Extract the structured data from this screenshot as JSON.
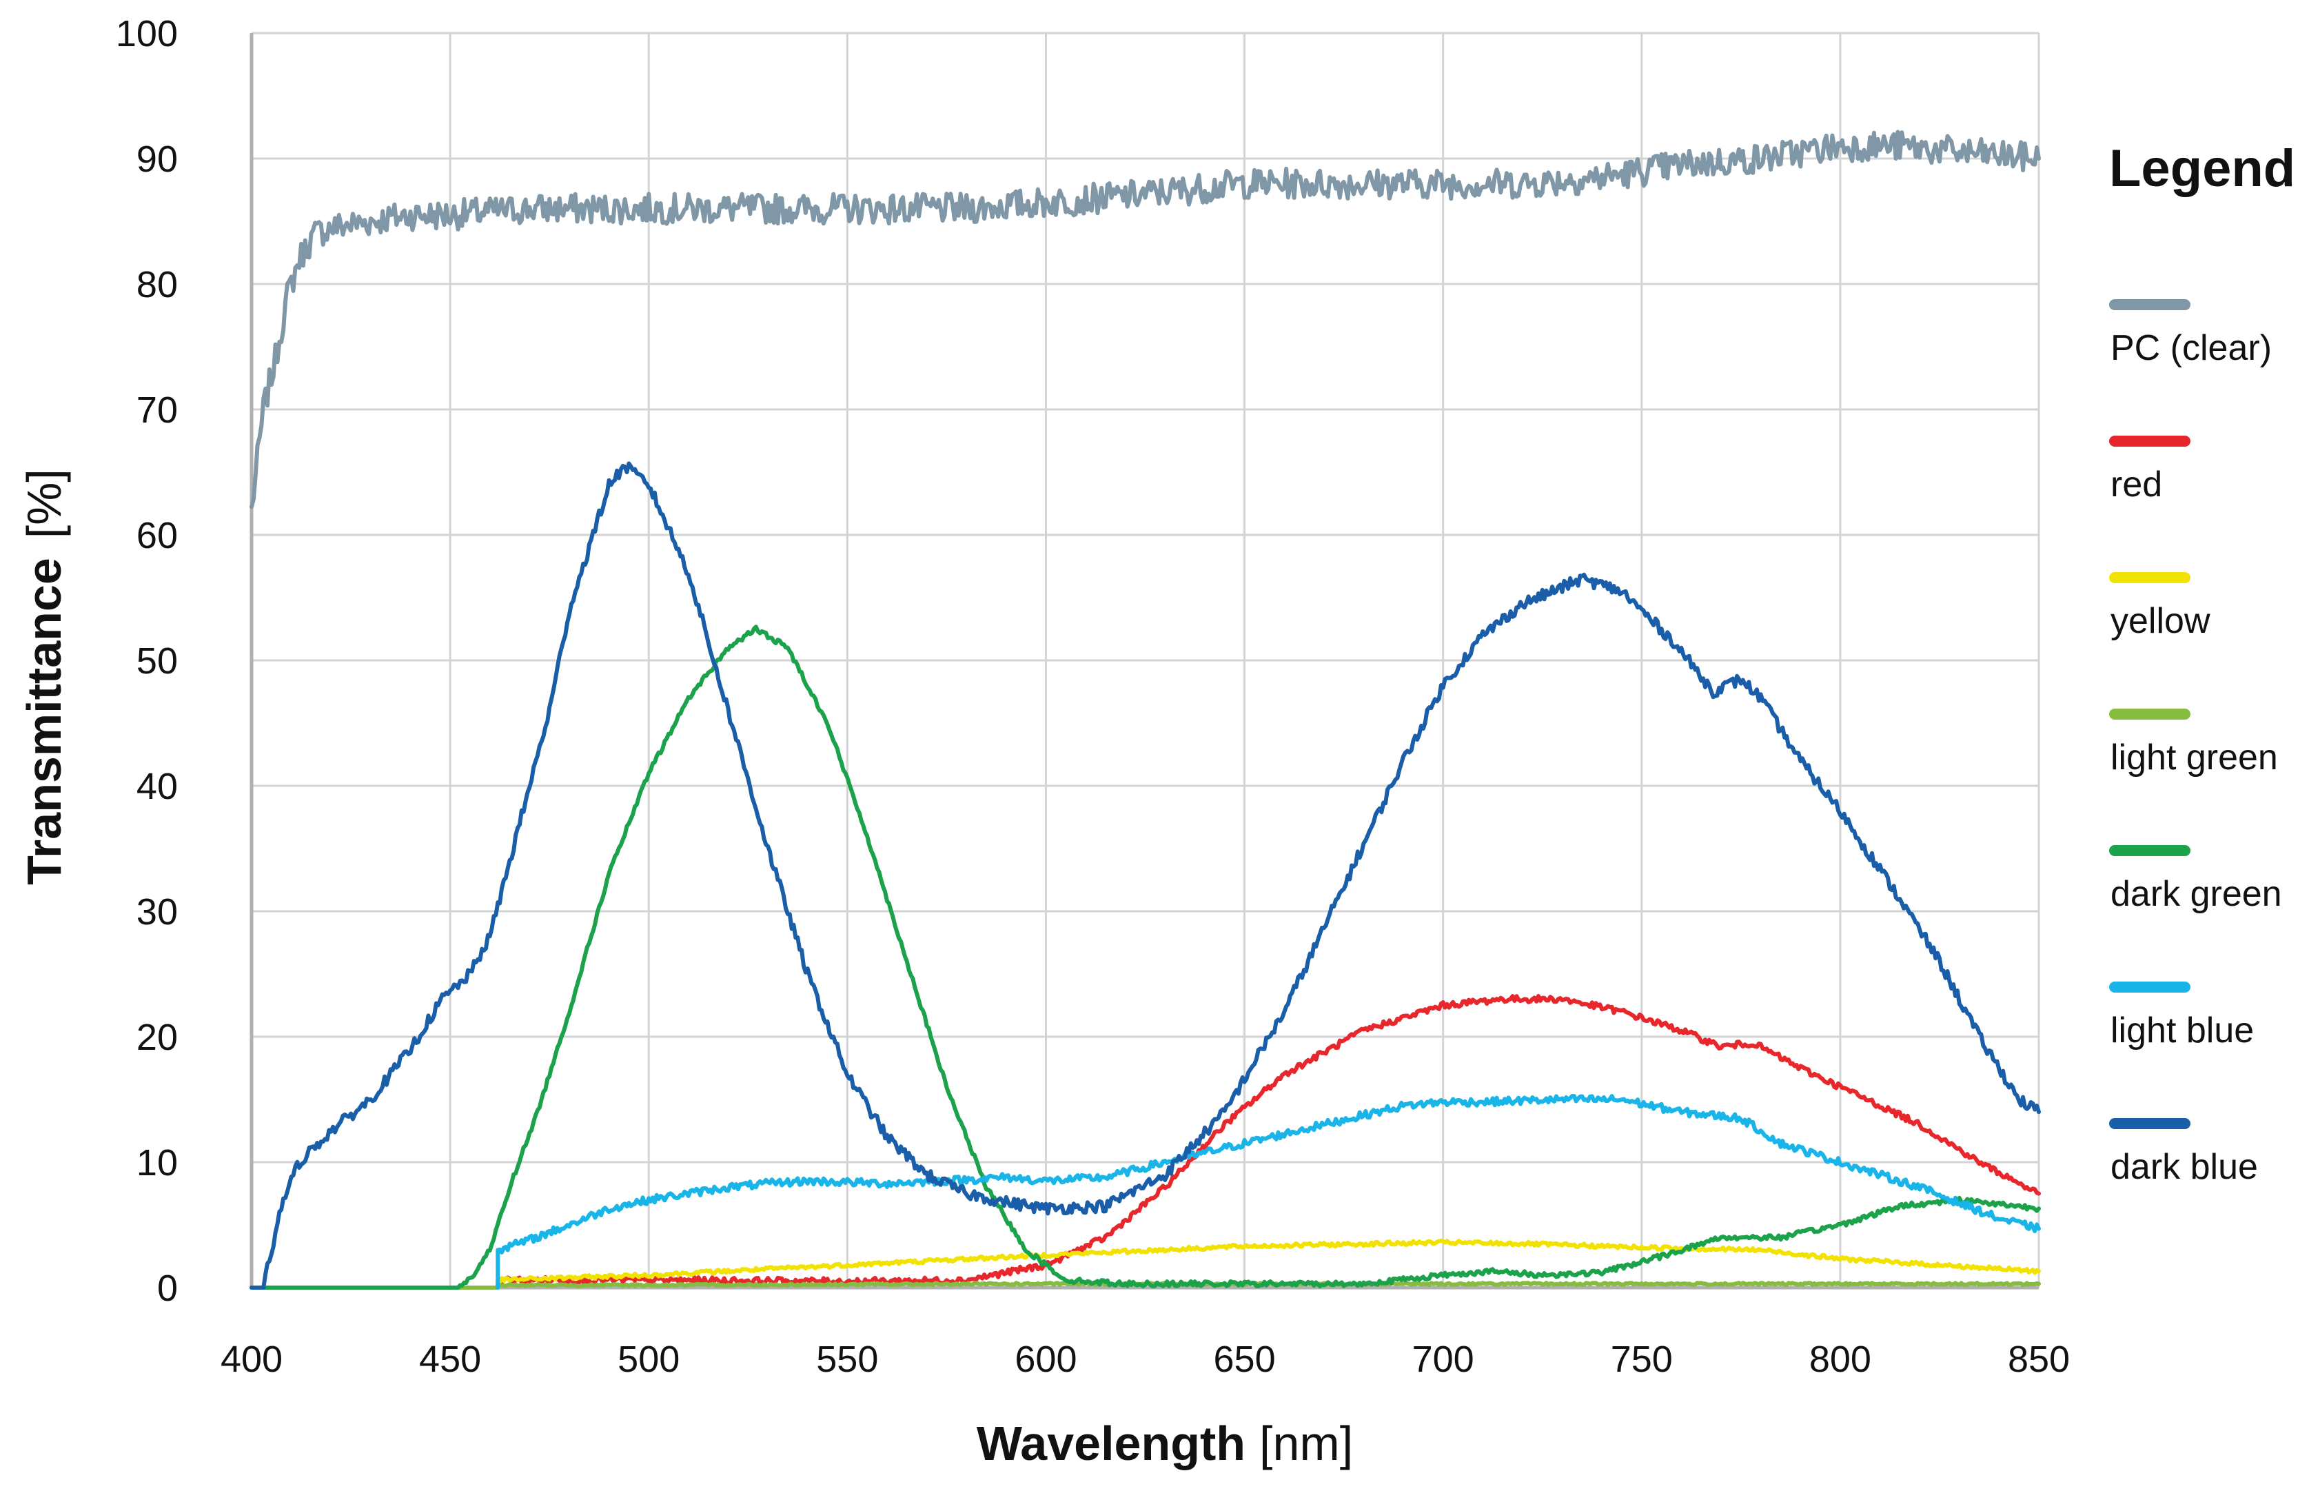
{
  "chart_data": {
    "type": "line",
    "title": "",
    "xlabel": "Wavelength",
    "xunit": "[nm]",
    "ylabel": "Transmittance",
    "yunit": "[%]",
    "xlim": [
      400,
      850
    ],
    "ylim": [
      0,
      100
    ],
    "xticks": [
      "400",
      "450",
      "500",
      "550",
      "600",
      "650",
      "700",
      "750",
      "800",
      "850"
    ],
    "yticks": [
      "0",
      "10",
      "20",
      "30",
      "40",
      "50",
      "60",
      "70",
      "80",
      "90",
      "100"
    ],
    "grid": true,
    "legend_title": "Legend",
    "legend_position": "right",
    "series": [
      {
        "name": "PC (clear)",
        "color": "#7f97a6",
        "noise": 1.2,
        "points": [
          [
            400,
            62
          ],
          [
            403,
            70
          ],
          [
            406,
            74
          ],
          [
            409,
            79
          ],
          [
            412,
            82
          ],
          [
            416,
            84
          ],
          [
            420,
            84.5
          ],
          [
            430,
            85
          ],
          [
            440,
            85.5
          ],
          [
            450,
            85.5
          ],
          [
            470,
            86
          ],
          [
            500,
            86
          ],
          [
            530,
            86
          ],
          [
            560,
            86
          ],
          [
            580,
            86
          ],
          [
            600,
            86.5
          ],
          [
            620,
            87
          ],
          [
            650,
            88
          ],
          [
            680,
            88
          ],
          [
            700,
            88
          ],
          [
            720,
            88
          ],
          [
            740,
            88.5
          ],
          [
            760,
            89.5
          ],
          [
            780,
            90
          ],
          [
            800,
            91
          ],
          [
            815,
            91
          ],
          [
            830,
            90.5
          ],
          [
            850,
            90
          ]
        ]
      },
      {
        "name": "red",
        "color": "#e8272c",
        "noise": 0.25,
        "points": [
          [
            462,
            0
          ],
          [
            462,
            0.6
          ],
          [
            500,
            0.6
          ],
          [
            550,
            0.5
          ],
          [
            580,
            0.6
          ],
          [
            600,
            1.8
          ],
          [
            615,
            4
          ],
          [
            630,
            8
          ],
          [
            645,
            13
          ],
          [
            660,
            17
          ],
          [
            680,
            20.5
          ],
          [
            700,
            22.5
          ],
          [
            715,
            23
          ],
          [
            730,
            23
          ],
          [
            745,
            22
          ],
          [
            760,
            20.5
          ],
          [
            770,
            19.2
          ],
          [
            778,
            19.5
          ],
          [
            790,
            17.5
          ],
          [
            800,
            16
          ],
          [
            820,
            13
          ],
          [
            835,
            10
          ],
          [
            850,
            7.5
          ]
        ]
      },
      {
        "name": "yellow",
        "color": "#f2e200",
        "noise": 0.15,
        "points": [
          [
            462,
            0
          ],
          [
            462,
            0.6
          ],
          [
            500,
            1
          ],
          [
            550,
            1.8
          ],
          [
            600,
            2.6
          ],
          [
            650,
            3.3
          ],
          [
            700,
            3.6
          ],
          [
            720,
            3.5
          ],
          [
            750,
            3.2
          ],
          [
            780,
            3
          ],
          [
            800,
            2.3
          ],
          [
            825,
            1.8
          ],
          [
            850,
            1.3
          ]
        ]
      },
      {
        "name": "light green",
        "color": "#86bc3f",
        "noise": 0.08,
        "points": [
          [
            400,
            0
          ],
          [
            462,
            0
          ],
          [
            462,
            0.2
          ],
          [
            500,
            0.2
          ],
          [
            600,
            0.3
          ],
          [
            700,
            0.3
          ],
          [
            800,
            0.3
          ],
          [
            850,
            0.3
          ]
        ]
      },
      {
        "name": "dark green",
        "color": "#1ba24a",
        "noise": 0.2,
        "points": [
          [
            400,
            0
          ],
          [
            452,
            0
          ],
          [
            456,
            1
          ],
          [
            460,
            3
          ],
          [
            465,
            8
          ],
          [
            472,
            14
          ],
          [
            480,
            22
          ],
          [
            490,
            33
          ],
          [
            500,
            41
          ],
          [
            510,
            47
          ],
          [
            520,
            51
          ],
          [
            527,
            52.5
          ],
          [
            535,
            51
          ],
          [
            545,
            45
          ],
          [
            555,
            36
          ],
          [
            565,
            26
          ],
          [
            575,
            16
          ],
          [
            585,
            8
          ],
          [
            595,
            3
          ],
          [
            605,
            0.6
          ],
          [
            620,
            0.3
          ],
          [
            650,
            0.3
          ],
          [
            680,
            0.3
          ],
          [
            700,
            1
          ],
          [
            712,
            1.3
          ],
          [
            725,
            1
          ],
          [
            740,
            1.2
          ],
          [
            755,
            2.5
          ],
          [
            770,
            4
          ],
          [
            785,
            4
          ],
          [
            800,
            5
          ],
          [
            815,
            6.5
          ],
          [
            830,
            7
          ],
          [
            845,
            6.5
          ],
          [
            850,
            6.3
          ]
        ]
      },
      {
        "name": "light blue",
        "color": "#19b5e8",
        "noise": 0.3,
        "points": [
          [
            462,
            0
          ],
          [
            462,
            3
          ],
          [
            470,
            3.8
          ],
          [
            480,
            5
          ],
          [
            490,
            6.3
          ],
          [
            500,
            7
          ],
          [
            510,
            7.5
          ],
          [
            520,
            8
          ],
          [
            530,
            8.3
          ],
          [
            540,
            8.5
          ],
          [
            560,
            8.3
          ],
          [
            580,
            8.6
          ],
          [
            590,
            8.8
          ],
          [
            600,
            8.5
          ],
          [
            615,
            8.8
          ],
          [
            630,
            10
          ],
          [
            650,
            11.5
          ],
          [
            670,
            13
          ],
          [
            690,
            14.5
          ],
          [
            700,
            14.8
          ],
          [
            710,
            14.8
          ],
          [
            730,
            15
          ],
          [
            745,
            15
          ],
          [
            760,
            14
          ],
          [
            775,
            13.5
          ],
          [
            785,
            11.5
          ],
          [
            800,
            10
          ],
          [
            820,
            8
          ],
          [
            840,
            5.5
          ],
          [
            850,
            4.7
          ]
        ]
      },
      {
        "name": "dark blue",
        "color": "#1a5ea9",
        "noise": 0.45,
        "points": [
          [
            400,
            0
          ],
          [
            403,
            0
          ],
          [
            405,
            3
          ],
          [
            408,
            7
          ],
          [
            412,
            10
          ],
          [
            420,
            12.5
          ],
          [
            430,
            15
          ],
          [
            440,
            19
          ],
          [
            448,
            23
          ],
          [
            455,
            25
          ],
          [
            460,
            28
          ],
          [
            465,
            34
          ],
          [
            470,
            40
          ],
          [
            475,
            46
          ],
          [
            480,
            54
          ],
          [
            486,
            60
          ],
          [
            490,
            64
          ],
          [
            494,
            65.5
          ],
          [
            500,
            64
          ],
          [
            510,
            57
          ],
          [
            520,
            46
          ],
          [
            530,
            35
          ],
          [
            540,
            25
          ],
          [
            550,
            17
          ],
          [
            560,
            12
          ],
          [
            570,
            9
          ],
          [
            580,
            7.5
          ],
          [
            590,
            6.8
          ],
          [
            600,
            6.3
          ],
          [
            615,
            6.5
          ],
          [
            630,
            9
          ],
          [
            645,
            14
          ],
          [
            660,
            22
          ],
          [
            675,
            32
          ],
          [
            690,
            42
          ],
          [
            700,
            48
          ],
          [
            710,
            52
          ],
          [
            720,
            54.5
          ],
          [
            735,
            56.5
          ],
          [
            745,
            55.5
          ],
          [
            758,
            51.5
          ],
          [
            768,
            47.5
          ],
          [
            775,
            48.5
          ],
          [
            780,
            47
          ],
          [
            790,
            42
          ],
          [
            800,
            38
          ],
          [
            815,
            31
          ],
          [
            825,
            26
          ],
          [
            835,
            20
          ],
          [
            845,
            15
          ],
          [
            850,
            14
          ]
        ]
      }
    ]
  }
}
